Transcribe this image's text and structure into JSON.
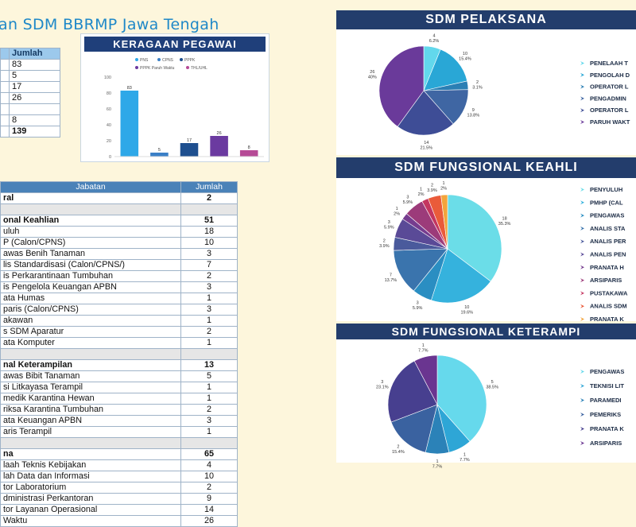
{
  "page": {
    "title": "an SDM BBRMP Jawa Tengah"
  },
  "summary_table": {
    "header": "Jumlah",
    "values": [
      "83",
      "5",
      "17",
      "26",
      "",
      "8",
      "139"
    ]
  },
  "keragaman": {
    "title": "KERAGAAN PEGAWAI",
    "chart_data": {
      "type": "bar",
      "title": "KERAGAAN PEGAWAI",
      "categories": [
        "PNS",
        "CPNS",
        "PPPK",
        "PPPK Paruh Waktu",
        "THL/UHL"
      ],
      "values": [
        83,
        5,
        17,
        26,
        8
      ],
      "colors": [
        "#2ea8e8",
        "#3a7fc6",
        "#1e4f8f",
        "#6b3aa0",
        "#b64b96"
      ],
      "ylim": [
        0,
        100
      ],
      "yticks": [
        0,
        20,
        40,
        60,
        80,
        100
      ],
      "grid": false,
      "legend": "top"
    }
  },
  "jabatan_table": {
    "col_jabatan": "Jabatan",
    "col_jumlah": "Jumlah",
    "rows": [
      {
        "name": "ral",
        "value": "2",
        "style": "bold"
      },
      {
        "name": "",
        "value": "",
        "style": "gray"
      },
      {
        "name": "onal Keahlian",
        "value": "51",
        "style": "bold"
      },
      {
        "name": "uluh",
        "value": "18",
        "style": ""
      },
      {
        "name": "P (Calon/CPNS)",
        "value": "10",
        "style": ""
      },
      {
        "name": "awas Benih Tanaman",
        "value": "3",
        "style": ""
      },
      {
        "name": "lis Standardisasi (Calon/CPNS/)",
        "value": "7",
        "style": ""
      },
      {
        "name": "is Perkarantinaan Tumbuhan",
        "value": "2",
        "style": ""
      },
      {
        "name": "is Pengelola Keuangan APBN",
        "value": "3",
        "style": ""
      },
      {
        "name": "ata Humas",
        "value": "1",
        "style": ""
      },
      {
        "name": "paris (Calon/CPNS)",
        "value": "3",
        "style": ""
      },
      {
        "name": "akawan",
        "value": "1",
        "style": ""
      },
      {
        "name": "s SDM Aparatur",
        "value": "2",
        "style": ""
      },
      {
        "name": "ata Komputer",
        "value": "1",
        "style": ""
      },
      {
        "name": "",
        "value": "",
        "style": "gray"
      },
      {
        "name": "nal Keterampilan",
        "value": "13",
        "style": "bold"
      },
      {
        "name": "awas Bibit Tanaman",
        "value": "5",
        "style": ""
      },
      {
        "name": "si Litkayasa Terampil",
        "value": "1",
        "style": ""
      },
      {
        "name": "medik Karantina Hewan",
        "value": "1",
        "style": ""
      },
      {
        "name": "riksa Karantina Tumbuhan",
        "value": "2",
        "style": ""
      },
      {
        "name": "ata Keuangan APBN",
        "value": "3",
        "style": ""
      },
      {
        "name": "aris Terampil",
        "value": "1",
        "style": ""
      },
      {
        "name": "",
        "value": "",
        "style": "gray"
      },
      {
        "name": "na",
        "value": "65",
        "style": "bold"
      },
      {
        "name": "laah Teknis Kebijakan",
        "value": "4",
        "style": ""
      },
      {
        "name": "lah Data dan Informasi",
        "value": "10",
        "style": ""
      },
      {
        "name": "tor Laboratorium",
        "value": "2",
        "style": ""
      },
      {
        "name": "dministrasi Perkantoran",
        "value": "9",
        "style": ""
      },
      {
        "name": "tor Layanan Operasional",
        "value": "14",
        "style": ""
      },
      {
        "name": "Waktu",
        "value": "26",
        "style": ""
      }
    ]
  },
  "pelaksana": {
    "title": "SDM PELAKSANA",
    "chart_data": {
      "type": "pie",
      "title": "SDM PELAKSANA",
      "labels": [
        "PENELAAH T",
        "PENGOLAH D",
        "OPERATOR L",
        "PENGADMIN",
        "OPERATOR L",
        "PARUH WAKT"
      ],
      "values": [
        4,
        10,
        2,
        9,
        14,
        26
      ],
      "pct_labels": [
        "6.2%",
        "15.4%",
        "3.1%",
        "13.8%",
        "21.5%",
        "40%"
      ],
      "colors": [
        "#62d8ec",
        "#29a7d6",
        "#2b7fb4",
        "#3f66a3",
        "#3e4d96",
        "#6a3a9a"
      ]
    }
  },
  "keahlian": {
    "title": "SDM FUNGSIONAL KEAHLI",
    "chart_data": {
      "type": "pie",
      "title": "SDM FUNGSIONAL KEAHLI",
      "labels": [
        "PENYULUH",
        "PMHP (CAL",
        "PENGAWAS",
        "ANALIS STA",
        "ANALIS PER",
        "ANALIS PEN",
        "PRANATA H",
        "ARSIPARIS",
        "PUSTAKAWA",
        "ANALIS SDM",
        "PRANATA K"
      ],
      "values": [
        18,
        10,
        3,
        7,
        2,
        3,
        1,
        3,
        1,
        2,
        1
      ],
      "pct_labels": [
        "35.3%",
        "19.6%",
        "5.9%",
        "13.7%",
        "3.9%",
        "5.9%",
        "2%",
        "5.9%",
        "2%",
        "3.9%",
        "2%"
      ],
      "colors": [
        "#6bdde8",
        "#35b2dd",
        "#2a8ec2",
        "#3a74ad",
        "#4a5a9c",
        "#5a4a97",
        "#763d8f",
        "#9c3b7a",
        "#c43660",
        "#ea5b3a",
        "#f3a43c"
      ]
    }
  },
  "keterampilan": {
    "title": "SDM FUNGSIONAL KETERAMPI",
    "chart_data": {
      "type": "pie",
      "title": "SDM FUNGSIONAL KETERAMPI",
      "labels": [
        "PENGAWAS",
        "TEKNISI LIT",
        "PARAMEDI",
        "PEMERIKS",
        "PRANATA K",
        "ARSIPARIS"
      ],
      "values": [
        5,
        1,
        1,
        2,
        3,
        1
      ],
      "pct_labels": [
        "38.5%",
        "7.7%",
        "7.7%",
        "15.4%",
        "23.1%",
        "7.7%"
      ],
      "colors": [
        "#66d9ec",
        "#2ea6d6",
        "#2b82b8",
        "#3a62a0",
        "#473f8f",
        "#6a3590"
      ]
    }
  }
}
